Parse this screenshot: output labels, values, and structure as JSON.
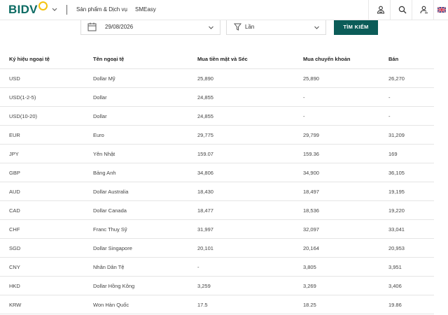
{
  "header": {
    "logo": "BIDV",
    "nav": [
      {
        "label": "Sản phẩm & Dịch vụ"
      },
      {
        "label": "SMEasy"
      }
    ],
    "icons": [
      "user-login-icon",
      "search-icon",
      "user-register-icon",
      "uk-flag-icon"
    ]
  },
  "search": {
    "date_value": "29/08/2026",
    "type_value": "Lần",
    "button_label": "TÌM KIẾM"
  },
  "table": {
    "columns": [
      "Ký hiệu ngoại tệ",
      "Tên ngoại tệ",
      "Mua tiền mặt và Séc",
      "Mua chuyển khoản",
      "Bán"
    ],
    "rows": [
      [
        "USD",
        "Dollar Mỹ",
        "25,890",
        "25,890",
        "26,270"
      ],
      [
        "USD(1-2-5)",
        "Dollar",
        "24,855",
        "-",
        "-"
      ],
      [
        "USD(10-20)",
        "Dollar",
        "24,855",
        "-",
        "-"
      ],
      [
        "EUR",
        "Euro",
        "29,775",
        "29,799",
        "31,209"
      ],
      [
        "JPY",
        "Yên Nhật",
        "159.07",
        "159.36",
        "169"
      ],
      [
        "GBP",
        "Bảng Anh",
        "34,806",
        "34,900",
        "36,105"
      ],
      [
        "AUD",
        "Dollar Australia",
        "18,430",
        "18,497",
        "19,195"
      ],
      [
        "CAD",
        "Dollar Canada",
        "18,477",
        "18,536",
        "19,220"
      ],
      [
        "CHF",
        "Franc Thuỵ Sỹ",
        "31,997",
        "32,097",
        "33,041"
      ],
      [
        "SGD",
        "Dollar Singapore",
        "20,101",
        "20,164",
        "20,953"
      ],
      [
        "CNY",
        "Nhân Dân Tệ",
        "-",
        "3,805",
        "3,951"
      ],
      [
        "HKD",
        "Dollar Hồng Kông",
        "3,259",
        "3,269",
        "3,406"
      ],
      [
        "KRW",
        "Won Hàn Quốc",
        "17.5",
        "18.25",
        "19.86"
      ]
    ]
  },
  "colors": {
    "brand": "#0b6b63",
    "button": "#0b5c58",
    "logo_accent": "#f4c20d"
  }
}
